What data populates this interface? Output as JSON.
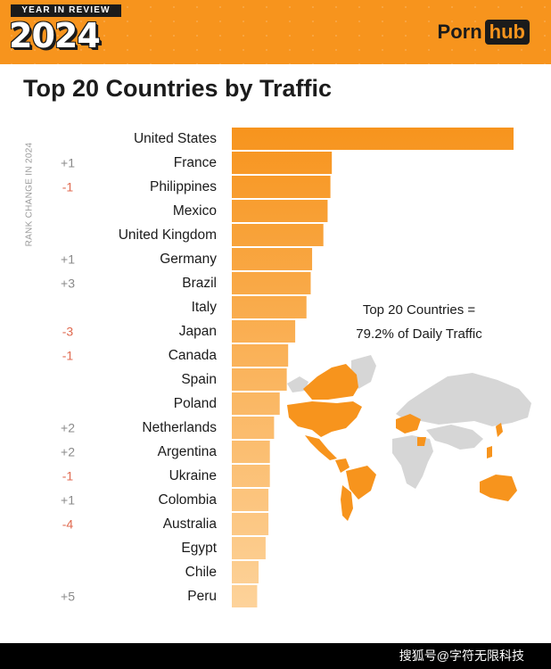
{
  "header": {
    "badge_top": "YEAR IN REVIEW",
    "badge_year": "2024",
    "logo_left": "Porn",
    "logo_right": "hub",
    "bg_color": "#f7941d"
  },
  "note": {
    "line1": "Top 20 Countries =",
    "line2": "79.2% of Daily Traffic"
  },
  "footer": {
    "watermark": "搜狐号@字符无限科技"
  },
  "chart_data": {
    "type": "bar",
    "orientation": "horizontal",
    "title": "Top 20 Countries by Traffic",
    "side_label": "RANK CHANGE IN 2024",
    "categories": [
      "United States",
      "France",
      "Philippines",
      "Mexico",
      "United Kingdom",
      "Germany",
      "Brazil",
      "Italy",
      "Japan",
      "Canada",
      "Spain",
      "Poland",
      "Netherlands",
      "Argentina",
      "Ukraine",
      "Colombia",
      "Australia",
      "Egypt",
      "Chile",
      "Peru"
    ],
    "rank_change": [
      "",
      "+1",
      "-1",
      "",
      "",
      "+1",
      "+3",
      "",
      "-3",
      "-1",
      "",
      "",
      "+2",
      "+2",
      "-1",
      "+1",
      "-4",
      "",
      "",
      "+5"
    ],
    "values": [
      100,
      35.5,
      35,
      34,
      32.5,
      28.5,
      28,
      26.5,
      22.5,
      20,
      19.5,
      17,
      15,
      13.5,
      13.5,
      13,
      13,
      12,
      9.5,
      9
    ],
    "value_unit": "relative to United States = 100 (no scale printed)",
    "xlim": [
      0,
      100
    ],
    "grid": false,
    "legend": "none",
    "colors": {
      "bar_top": "#f7941d",
      "bar_bottom": "#fdd39b",
      "positive_change": "#8a8a8a",
      "negative_change": "#e06a50"
    }
  }
}
